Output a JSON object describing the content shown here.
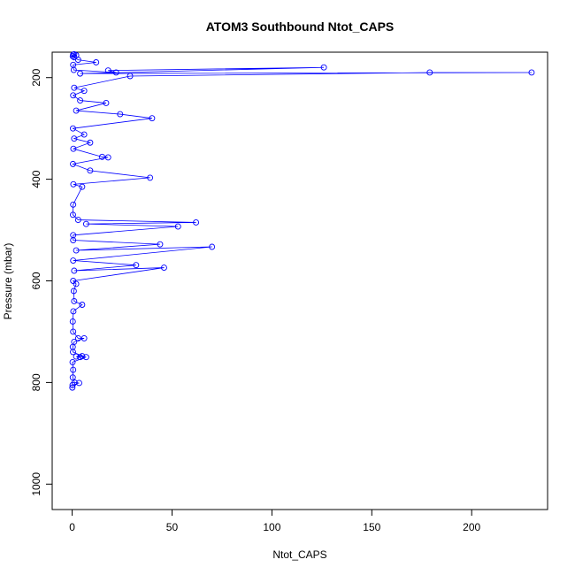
{
  "chart_data": {
    "type": "line",
    "title": "ATOM3 Southbound Ntot_CAPS",
    "xlabel": "Ntot_CAPS",
    "ylabel": "Pressure (mbar)",
    "xlim": [
      -10,
      238
    ],
    "ylim": [
      1050,
      150
    ],
    "y_reversed": true,
    "x_ticks": [
      0,
      50,
      100,
      150,
      200
    ],
    "y_ticks": [
      200,
      400,
      600,
      800,
      1000
    ],
    "grid": false,
    "legend": "none",
    "series": [
      {
        "color": "#0000ff",
        "marker": "open-circle",
        "points": [
          [
            0.1,
            810
          ],
          [
            0.2,
            805
          ],
          [
            3.5,
            801
          ],
          [
            1.2,
            800
          ],
          [
            0.3,
            790
          ],
          [
            0.5,
            775
          ],
          [
            0.2,
            760
          ],
          [
            7,
            750
          ],
          [
            4,
            750
          ],
          [
            2,
            749
          ],
          [
            5,
            748
          ],
          [
            0.4,
            740
          ],
          [
            0.3,
            730
          ],
          [
            1,
            720
          ],
          [
            6,
            713
          ],
          [
            3,
            713
          ],
          [
            0.5,
            700
          ],
          [
            0.3,
            680
          ],
          [
            0.6,
            660
          ],
          [
            5,
            647
          ],
          [
            1,
            640
          ],
          [
            0.8,
            620
          ],
          [
            2,
            606
          ],
          [
            0.5,
            600
          ],
          [
            46,
            574
          ],
          [
            1,
            580
          ],
          [
            32,
            569
          ],
          [
            0.5,
            560
          ],
          [
            70,
            533
          ],
          [
            2,
            540
          ],
          [
            44,
            528
          ],
          [
            0.5,
            520
          ],
          [
            0.5,
            510
          ],
          [
            53,
            493
          ],
          [
            7,
            488
          ],
          [
            62,
            485
          ],
          [
            3,
            480
          ],
          [
            0.4,
            470
          ],
          [
            0.5,
            450
          ],
          [
            5,
            415
          ],
          [
            0.6,
            410
          ],
          [
            39,
            397
          ],
          [
            9,
            383
          ],
          [
            0.4,
            370
          ],
          [
            18,
            357
          ],
          [
            15,
            356
          ],
          [
            0.6,
            340
          ],
          [
            9,
            328
          ],
          [
            1,
            320
          ],
          [
            6,
            312
          ],
          [
            0.4,
            300
          ],
          [
            40,
            280
          ],
          [
            24,
            272
          ],
          [
            2,
            265
          ],
          [
            17,
            250
          ],
          [
            4,
            245
          ],
          [
            0.5,
            235
          ],
          [
            6,
            226
          ],
          [
            1,
            220
          ],
          [
            29,
            197
          ],
          [
            179,
            190
          ],
          [
            230,
            190
          ],
          [
            4,
            192
          ],
          [
            126,
            180
          ],
          [
            18,
            186
          ],
          [
            22,
            190
          ],
          [
            0.8,
            185
          ],
          [
            0.5,
            175
          ],
          [
            12,
            170
          ],
          [
            3,
            165
          ],
          [
            1,
            160
          ],
          [
            0.3,
            158
          ],
          [
            2,
            156
          ],
          [
            0.5,
            155
          ],
          [
            1,
            154
          ]
        ]
      }
    ]
  }
}
